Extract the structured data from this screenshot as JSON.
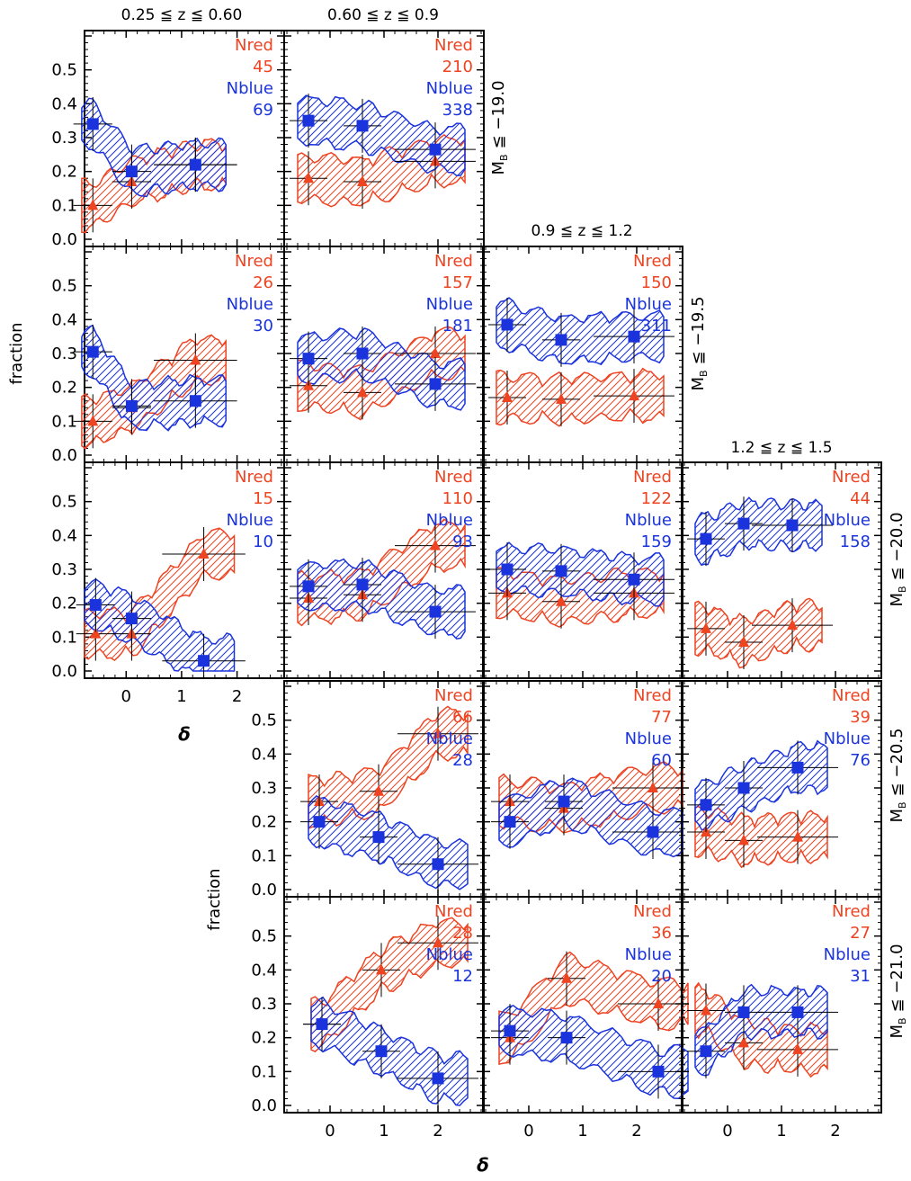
{
  "figure": {
    "column_titles": [
      "0.25 ≦ z ≦ 0.60",
      "0.60 ≦ z ≦ 0.9",
      "0.9 ≦ z ≦ 1.2",
      "1.2 ≦ z ≦ 1.5"
    ],
    "row_labels": [
      "M",
      "M",
      "M",
      "M",
      "M"
    ],
    "row_label_sub": "B",
    "row_thresholds": [
      "≦ −19.0",
      "≦ −19.5",
      "≦ −20.0",
      "≦ −20.5",
      "≦ −21.0"
    ],
    "ylabel": "fraction",
    "xlabel": "δ",
    "red_label": "Nred",
    "blue_label": "Nblue",
    "colors": {
      "red": "#ee4422",
      "blue": "#1a33dd",
      "axis": "#000000"
    }
  },
  "chart_data": {
    "type": "scatter",
    "x_ticks": [
      0,
      1,
      2
    ],
    "y_ticks": [
      "0.0",
      "0.1",
      "0.2",
      "0.3",
      "0.4",
      "0.5"
    ],
    "ylim": [
      0.0,
      0.6
    ],
    "panels": [
      {
        "row": 0,
        "col": 0,
        "nred": "45",
        "nblue": "69",
        "xlim": [
          -0.75,
          2.85
        ],
        "red": [
          [
            -0.6,
            0.1
          ],
          [
            0.1,
            0.17
          ],
          [
            1.25,
            0.22
          ]
        ],
        "blue": [
          [
            -0.6,
            0.34
          ],
          [
            0.1,
            0.2
          ],
          [
            1.25,
            0.22
          ]
        ]
      },
      {
        "row": 0,
        "col": 1,
        "nred": "210",
        "nblue": "338",
        "xlim": [
          -0.85,
          2.85
        ],
        "red": [
          [
            -0.4,
            0.18
          ],
          [
            0.6,
            0.17
          ],
          [
            1.95,
            0.23
          ]
        ],
        "blue": [
          [
            -0.4,
            0.35
          ],
          [
            0.6,
            0.335
          ],
          [
            1.95,
            0.265
          ]
        ]
      },
      {
        "row": 1,
        "col": 0,
        "nred": "26",
        "nblue": "30",
        "xlim": [
          -0.75,
          2.85
        ],
        "red": [
          [
            -0.6,
            0.1
          ],
          [
            0.1,
            0.14
          ],
          [
            1.25,
            0.28
          ]
        ],
        "blue": [
          [
            -0.6,
            0.305
          ],
          [
            0.1,
            0.145
          ],
          [
            1.25,
            0.16
          ]
        ]
      },
      {
        "row": 1,
        "col": 1,
        "nred": "157",
        "nblue": "181",
        "xlim": [
          -0.85,
          2.85
        ],
        "red": [
          [
            -0.4,
            0.205
          ],
          [
            0.6,
            0.185
          ],
          [
            1.95,
            0.3
          ]
        ],
        "blue": [
          [
            -0.4,
            0.285
          ],
          [
            0.6,
            0.3
          ],
          [
            1.95,
            0.21
          ]
        ]
      },
      {
        "row": 1,
        "col": 2,
        "nred": "150",
        "nblue": "311",
        "xlim": [
          -0.85,
          2.85
        ],
        "red": [
          [
            -0.4,
            0.17
          ],
          [
            0.6,
            0.165
          ],
          [
            1.95,
            0.175
          ]
        ],
        "blue": [
          [
            -0.4,
            0.385
          ],
          [
            0.6,
            0.34
          ],
          [
            1.95,
            0.35
          ]
        ]
      },
      {
        "row": 2,
        "col": 0,
        "nred": "15",
        "nblue": "10",
        "xlim": [
          -0.75,
          2.85
        ],
        "red": [
          [
            -0.55,
            0.11
          ],
          [
            0.1,
            0.11
          ],
          [
            1.4,
            0.345
          ]
        ],
        "blue": [
          [
            -0.55,
            0.195
          ],
          [
            0.1,
            0.155
          ],
          [
            1.4,
            0.03
          ]
        ]
      },
      {
        "row": 2,
        "col": 1,
        "nred": "110",
        "nblue": "93",
        "xlim": [
          -0.85,
          2.85
        ],
        "red": [
          [
            -0.4,
            0.215
          ],
          [
            0.6,
            0.225
          ],
          [
            1.95,
            0.37
          ]
        ],
        "blue": [
          [
            -0.4,
            0.25
          ],
          [
            0.6,
            0.255
          ],
          [
            1.95,
            0.175
          ]
        ]
      },
      {
        "row": 2,
        "col": 2,
        "nred": "122",
        "nblue": "159",
        "xlim": [
          -0.85,
          2.85
        ],
        "red": [
          [
            -0.4,
            0.23
          ],
          [
            0.6,
            0.205
          ],
          [
            1.95,
            0.23
          ]
        ],
        "blue": [
          [
            -0.4,
            0.3
          ],
          [
            0.6,
            0.295
          ],
          [
            1.95,
            0.27
          ]
        ]
      },
      {
        "row": 2,
        "col": 3,
        "nred": "44",
        "nblue": "158",
        "xlim": [
          -0.85,
          2.85
        ],
        "red": [
          [
            -0.4,
            0.125
          ],
          [
            0.3,
            0.085
          ],
          [
            1.2,
            0.135
          ]
        ],
        "blue": [
          [
            -0.4,
            0.39
          ],
          [
            0.3,
            0.435
          ],
          [
            1.2,
            0.43
          ]
        ]
      },
      {
        "row": 3,
        "col": 1,
        "nred": "66",
        "nblue": "28",
        "xlim": [
          -0.85,
          2.85
        ],
        "red": [
          [
            -0.2,
            0.26
          ],
          [
            0.9,
            0.29
          ],
          [
            2.0,
            0.46
          ]
        ],
        "blue": [
          [
            -0.2,
            0.2
          ],
          [
            0.9,
            0.155
          ],
          [
            2.0,
            0.075
          ]
        ]
      },
      {
        "row": 3,
        "col": 2,
        "nred": "77",
        "nblue": "60",
        "xlim": [
          -0.85,
          2.85
        ],
        "red": [
          [
            -0.35,
            0.26
          ],
          [
            0.65,
            0.24
          ],
          [
            2.3,
            0.3
          ]
        ],
        "blue": [
          [
            -0.35,
            0.2
          ],
          [
            0.65,
            0.26
          ],
          [
            2.3,
            0.17
          ]
        ]
      },
      {
        "row": 3,
        "col": 3,
        "nred": "39",
        "nblue": "76",
        "xlim": [
          -0.85,
          2.85
        ],
        "red": [
          [
            -0.4,
            0.17
          ],
          [
            0.3,
            0.145
          ],
          [
            1.3,
            0.155
          ]
        ],
        "blue": [
          [
            -0.4,
            0.25
          ],
          [
            0.3,
            0.3
          ],
          [
            1.3,
            0.36
          ]
        ]
      },
      {
        "row": 4,
        "col": 1,
        "nred": "28",
        "nblue": "12",
        "xlim": [
          -0.85,
          2.85
        ],
        "red": [
          [
            -0.15,
            0.24
          ],
          [
            0.95,
            0.4
          ],
          [
            2.0,
            0.48
          ]
        ],
        "blue": [
          [
            -0.15,
            0.24
          ],
          [
            0.95,
            0.16
          ],
          [
            2.0,
            0.08
          ]
        ]
      },
      {
        "row": 4,
        "col": 2,
        "nred": "36",
        "nblue": "20",
        "xlim": [
          -0.85,
          2.85
        ],
        "red": [
          [
            -0.35,
            0.2
          ],
          [
            0.7,
            0.375
          ],
          [
            2.4,
            0.3
          ]
        ],
        "blue": [
          [
            -0.35,
            0.22
          ],
          [
            0.7,
            0.2
          ],
          [
            2.4,
            0.1
          ]
        ]
      },
      {
        "row": 4,
        "col": 3,
        "nred": "27",
        "nblue": "31",
        "xlim": [
          -0.85,
          2.85
        ],
        "red": [
          [
            -0.4,
            0.28
          ],
          [
            0.3,
            0.185
          ],
          [
            1.3,
            0.165
          ]
        ],
        "blue": [
          [
            -0.4,
            0.16
          ],
          [
            0.3,
            0.275
          ],
          [
            1.3,
            0.275
          ]
        ]
      }
    ]
  }
}
